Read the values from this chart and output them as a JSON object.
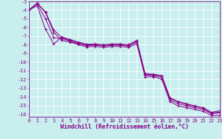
{
  "xlabel": "Windchill (Refroidissement éolien,°C)",
  "background_color": "#c8eeee",
  "grid_color": "#aadddd",
  "line_color": "#880088",
  "x_ticks": [
    0,
    1,
    2,
    3,
    4,
    5,
    6,
    7,
    8,
    9,
    10,
    11,
    12,
    13,
    14,
    15,
    16,
    17,
    18,
    19,
    20,
    21,
    22,
    23
  ],
  "y_ticks": [
    -3,
    -4,
    -5,
    -6,
    -7,
    -8,
    -9,
    -10,
    -11,
    -12,
    -13,
    -14,
    -15,
    -16
  ],
  "xlim": [
    0,
    23
  ],
  "ylim": [
    -16.3,
    -3.0
  ],
  "line1": [
    -4.0,
    -3.2,
    -4.2,
    -6.3,
    -7.2,
    -7.5,
    -7.8,
    -8.0,
    -8.0,
    -8.1,
    -8.0,
    -8.0,
    -8.1,
    -7.6,
    -11.4,
    -11.5,
    -11.6,
    -14.2,
    -14.6,
    -14.9,
    -15.1,
    -15.3,
    -15.85,
    -15.75
  ],
  "line2": [
    -4.0,
    -3.2,
    -4.3,
    -6.6,
    -7.5,
    -7.7,
    -8.0,
    -8.25,
    -8.2,
    -8.3,
    -8.2,
    -8.2,
    -8.3,
    -7.9,
    -11.7,
    -11.7,
    -11.95,
    -14.55,
    -15.05,
    -15.25,
    -15.45,
    -15.65,
    -16.15,
    -16.1
  ],
  "line3": [
    -4.0,
    -3.5,
    -6.2,
    -7.9,
    -7.1,
    -7.4,
    -7.7,
    -7.95,
    -7.9,
    -8.0,
    -7.9,
    -7.9,
    -8.0,
    -7.5,
    -11.3,
    -11.4,
    -11.55,
    -14.1,
    -14.55,
    -14.8,
    -15.05,
    -15.25,
    -15.8,
    -15.6
  ],
  "line4": [
    -4.0,
    -3.3,
    -5.0,
    -7.2,
    -7.3,
    -7.6,
    -7.9,
    -8.1,
    -8.05,
    -8.15,
    -8.05,
    -8.05,
    -8.15,
    -7.7,
    -11.5,
    -11.55,
    -11.75,
    -14.35,
    -14.8,
    -15.05,
    -15.25,
    -15.45,
    -15.95,
    -15.85
  ],
  "marker_size": 2.5,
  "line_width": 0.75,
  "tick_fontsize": 5.0,
  "xlabel_fontsize": 6.0
}
